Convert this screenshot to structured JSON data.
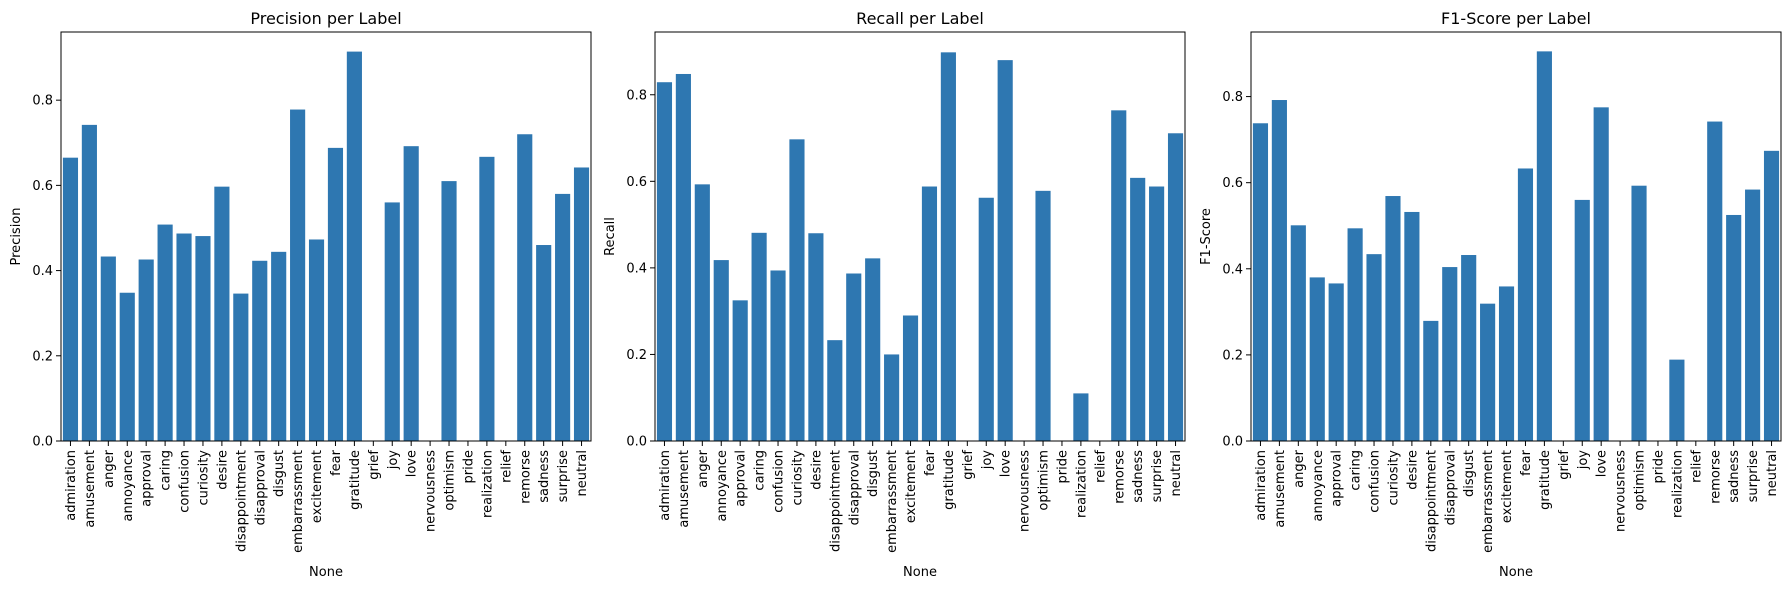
{
  "colors": {
    "bar": "#2e77b1"
  },
  "chart_data": [
    {
      "type": "bar",
      "title": "Precision per Label",
      "xlabel": "None",
      "ylabel": "Precision",
      "ylim": [
        0,
        0.96
      ],
      "yticks": [
        "0.0",
        "0.2",
        "0.4",
        "0.6",
        "0.8"
      ],
      "categories": [
        "admiration",
        "amusement",
        "anger",
        "annoyance",
        "approval",
        "caring",
        "confusion",
        "curiosity",
        "desire",
        "disappointment",
        "disapproval",
        "disgust",
        "embarrassment",
        "excitement",
        "fear",
        "gratitude",
        "grief",
        "joy",
        "love",
        "nervousness",
        "optimism",
        "pride",
        "realization",
        "relief",
        "remorse",
        "sadness",
        "surprise",
        "neutral"
      ],
      "values": [
        0.665,
        0.742,
        0.433,
        0.348,
        0.426,
        0.508,
        0.487,
        0.481,
        0.597,
        0.346,
        0.423,
        0.444,
        0.778,
        0.473,
        0.688,
        0.914,
        0.0,
        0.56,
        0.692,
        0.0,
        0.61,
        0.0,
        0.667,
        0.0,
        0.72,
        0.46,
        0.58,
        0.642
      ],
      "grid": false
    },
    {
      "type": "bar",
      "title": "Recall per Label",
      "xlabel": "None",
      "ylabel": "Recall",
      "ylim": [
        0,
        0.945
      ],
      "yticks": [
        "0.0",
        "0.2",
        "0.4",
        "0.6",
        "0.8"
      ],
      "categories": [
        "admiration",
        "amusement",
        "anger",
        "annoyance",
        "approval",
        "caring",
        "confusion",
        "curiosity",
        "desire",
        "disappointment",
        "disapproval",
        "disgust",
        "embarrassment",
        "excitement",
        "fear",
        "gratitude",
        "grief",
        "joy",
        "love",
        "nervousness",
        "optimism",
        "pride",
        "realization",
        "relief",
        "remorse",
        "sadness",
        "surprise",
        "neutral"
      ],
      "values": [
        0.829,
        0.848,
        0.593,
        0.418,
        0.325,
        0.481,
        0.394,
        0.697,
        0.48,
        0.233,
        0.387,
        0.422,
        0.2,
        0.29,
        0.588,
        0.898,
        0.0,
        0.562,
        0.88,
        0.0,
        0.578,
        0.0,
        0.11,
        0.0,
        0.764,
        0.608,
        0.588,
        0.711
      ],
      "grid": false
    },
    {
      "type": "bar",
      "title": "F1-Score per Label",
      "xlabel": "None",
      "ylabel": "F1-Score",
      "ylim": [
        0,
        0.95
      ],
      "yticks": [
        "0.0",
        "0.2",
        "0.4",
        "0.6",
        "0.8"
      ],
      "categories": [
        "admiration",
        "amusement",
        "anger",
        "annoyance",
        "approval",
        "caring",
        "confusion",
        "curiosity",
        "desire",
        "disappointment",
        "disapproval",
        "disgust",
        "embarrassment",
        "excitement",
        "fear",
        "gratitude",
        "grief",
        "joy",
        "love",
        "nervousness",
        "optimism",
        "pride",
        "realization",
        "relief",
        "remorse",
        "sadness",
        "surprise",
        "neutral"
      ],
      "values": [
        0.738,
        0.792,
        0.501,
        0.38,
        0.366,
        0.494,
        0.434,
        0.569,
        0.532,
        0.279,
        0.404,
        0.432,
        0.319,
        0.359,
        0.633,
        0.905,
        0.0,
        0.56,
        0.775,
        0.0,
        0.593,
        0.0,
        0.189,
        0.0,
        0.742,
        0.525,
        0.584,
        0.674
      ],
      "grid": false
    }
  ]
}
